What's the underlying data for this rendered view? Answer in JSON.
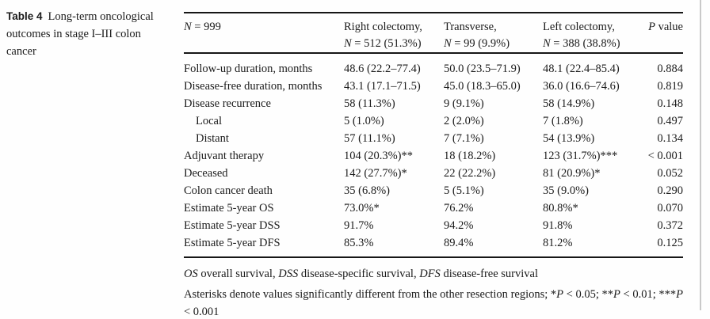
{
  "caption": {
    "label": "Table 4",
    "text": "Long-term oncological outcomes in stage I–III colon cancer"
  },
  "table": {
    "header": {
      "n_total": {
        "italic": "N",
        "rest": " = 999"
      },
      "columns": [
        {
          "line1": "Right colectomy,",
          "n": "N",
          "n_rest": " = 512 (51.3%)"
        },
        {
          "line1": "Transverse,",
          "n": "N",
          "n_rest": " = 99 (9.9%)"
        },
        {
          "line1": "Left colectomy,",
          "n": "N",
          "n_rest": " = 388 (38.8%)"
        }
      ],
      "p_value": {
        "italic": "P",
        "rest": " value"
      }
    },
    "rows": [
      {
        "label": "Follow-up duration, months",
        "indent": false,
        "values": [
          "48.6 (22.2–77.4)",
          "50.0 (23.5–71.9)",
          "48.1 (22.4–85.4)"
        ],
        "p": "0.884"
      },
      {
        "label": "Disease-free duration, months",
        "indent": false,
        "values": [
          "43.1 (17.1–71.5)",
          "45.0 (18.3–65.0)",
          "36.0 (16.6–74.6)"
        ],
        "p": "0.819"
      },
      {
        "label": "Disease recurrence",
        "indent": false,
        "values": [
          "58 (11.3%)",
          "9 (9.1%)",
          "58 (14.9%)"
        ],
        "p": "0.148"
      },
      {
        "label": "Local",
        "indent": true,
        "values": [
          "5 (1.0%)",
          "2 (2.0%)",
          "7 (1.8%)"
        ],
        "p": "0.497"
      },
      {
        "label": "Distant",
        "indent": true,
        "values": [
          "57 (11.1%)",
          "7 (7.1%)",
          "54 (13.9%)"
        ],
        "p": "0.134"
      },
      {
        "label": "Adjuvant therapy",
        "indent": false,
        "values": [
          "104 (20.3%)**",
          "18 (18.2%)",
          "123 (31.7%)***"
        ],
        "p": "< 0.001"
      },
      {
        "label": "Deceased",
        "indent": false,
        "values": [
          "142 (27.7%)*",
          "22 (22.2%)",
          "81 (20.9%)*"
        ],
        "p": "0.052"
      },
      {
        "label": "Colon cancer death",
        "indent": false,
        "values": [
          "35 (6.8%)",
          "5 (5.1%)",
          "35 (9.0%)"
        ],
        "p": "0.290"
      },
      {
        "label": "Estimate 5-year OS",
        "indent": false,
        "values": [
          "73.0%*",
          "76.2%",
          "80.8%*"
        ],
        "p": "0.070"
      },
      {
        "label": "Estimate 5-year DSS",
        "indent": false,
        "values": [
          "91.7%",
          "94.2%",
          "91.8%"
        ],
        "p": "0.372"
      },
      {
        "label": "Estimate 5-year DFS",
        "indent": false,
        "values": [
          "85.3%",
          "89.4%",
          "81.2%"
        ],
        "p": "0.125"
      }
    ]
  },
  "footnotes": {
    "abbreviations": [
      {
        "text": "OS",
        "italic": true
      },
      {
        "text": " overall survival, "
      },
      {
        "text": "DSS",
        "italic": true
      },
      {
        "text": " disease-specific survival, "
      },
      {
        "text": "DFS",
        "italic": true
      },
      {
        "text": " disease-free survival"
      }
    ],
    "significance": [
      {
        "text": "Asterisks denote values significantly different from the other resection regions; *"
      },
      {
        "text": "P",
        "italic": true
      },
      {
        "text": " < 0.05; **"
      },
      {
        "text": "P",
        "italic": true
      },
      {
        "text": " < 0.01; ***"
      },
      {
        "text": "P",
        "italic": true
      },
      {
        "text": " < 0.001"
      }
    ]
  },
  "colors": {
    "text": "#1b1b1b",
    "rule": "#161616",
    "edge_border": "#c9c9c9",
    "background": "#fefefe"
  }
}
